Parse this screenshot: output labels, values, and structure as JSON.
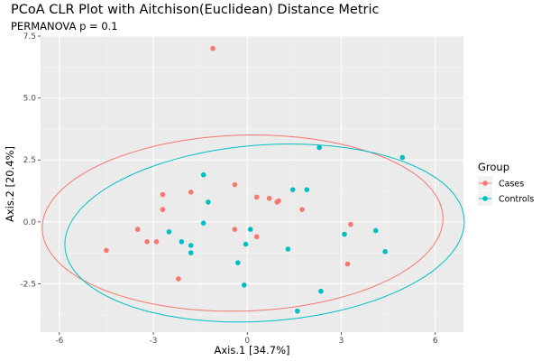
{
  "chart_data": {
    "type": "scatter",
    "title": "PCoA CLR Plot with Aitchison(Euclidean) Distance Metric",
    "subtitle": "PERMANOVA p = 0.1",
    "xlabel": "Axis.1  [34.7%]",
    "ylabel": "Axis.2  [20.4%]",
    "xlim": [
      -6.6,
      6.9
    ],
    "ylim": [
      -4.45,
      7.5
    ],
    "xticks": [
      -6,
      -3,
      0,
      3,
      6
    ],
    "xtick_labels": [
      "-6",
      "-3",
      "0",
      "3",
      "6"
    ],
    "yticks": [
      -2.5,
      0.0,
      2.5,
      5.0,
      7.5
    ],
    "ytick_labels": [
      "-2.5",
      "0.0",
      "2.5",
      "5.0",
      "7.5"
    ],
    "grid": true,
    "legend": {
      "title": "Group",
      "placement": "right"
    },
    "series": [
      {
        "name": "Cases",
        "color": "#F8766D",
        "points": [
          [
            -1.1,
            7.0
          ],
          [
            -4.5,
            -1.15
          ],
          [
            -3.5,
            -0.3
          ],
          [
            -3.2,
            -0.8
          ],
          [
            -2.9,
            -0.8
          ],
          [
            -2.7,
            1.1
          ],
          [
            -2.7,
            0.5
          ],
          [
            -2.2,
            -2.3
          ],
          [
            -1.8,
            1.2
          ],
          [
            -0.4,
            1.5
          ],
          [
            -0.4,
            -0.3
          ],
          [
            0.3,
            1.0
          ],
          [
            0.3,
            -0.6
          ],
          [
            0.7,
            0.95
          ],
          [
            0.95,
            0.8
          ],
          [
            1.0,
            0.85
          ],
          [
            1.75,
            0.5
          ],
          [
            3.2,
            -1.7
          ],
          [
            3.3,
            -0.1
          ],
          [
            4.4,
            -1.2
          ],
          [
            1.6,
            -3.6
          ]
        ],
        "ellipse": {
          "center": [
            -0.15,
            -0.05
          ],
          "angle_deg": 2.5,
          "rx": 6.4,
          "ry": 3.55
        }
      },
      {
        "name": "Controls",
        "color": "#00BFC4",
        "points": [
          [
            4.95,
            2.6
          ],
          [
            2.3,
            3.0
          ],
          [
            -1.4,
            1.9
          ],
          [
            -1.25,
            0.8
          ],
          [
            -1.4,
            -0.05
          ],
          [
            -2.5,
            -0.4
          ],
          [
            -2.1,
            -0.8
          ],
          [
            -1.8,
            -0.95
          ],
          [
            -1.8,
            -1.25
          ],
          [
            -0.3,
            -1.65
          ],
          [
            -0.1,
            -2.55
          ],
          [
            -0.05,
            -0.9
          ],
          [
            0.1,
            -0.3
          ],
          [
            1.3,
            -1.1
          ],
          [
            1.45,
            1.3
          ],
          [
            1.9,
            1.3
          ],
          [
            3.1,
            -0.5
          ],
          [
            4.1,
            -0.35
          ],
          [
            4.4,
            -1.2
          ],
          [
            2.35,
            -2.8
          ],
          [
            1.6,
            -3.6
          ]
        ],
        "ellipse": {
          "center": [
            0.55,
            -0.45
          ],
          "angle_deg": 6,
          "rx": 6.4,
          "ry": 3.55
        }
      }
    ]
  }
}
